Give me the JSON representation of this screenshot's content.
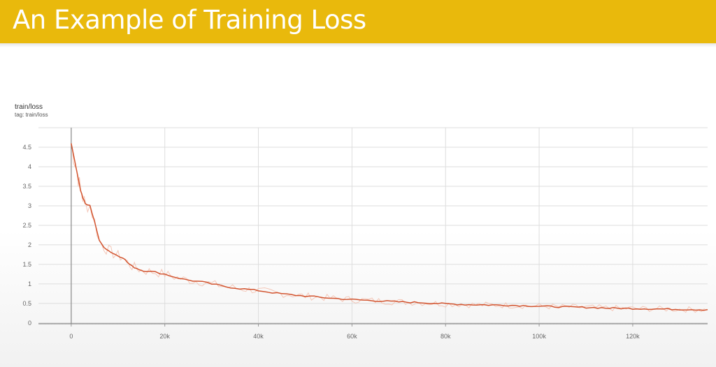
{
  "banner": {
    "title": "An Example of Training Loss"
  },
  "colors": {
    "banner": "#e9b90c",
    "line": "#d2542f",
    "raw_line": "#f4c7b8",
    "grid": "#dddddd"
  },
  "chart_data": {
    "type": "line",
    "title": "train/loss",
    "subtitle": "tag: train/loss",
    "xlabel": "",
    "ylabel": "",
    "x_ticks": [
      0,
      20000,
      40000,
      60000,
      80000,
      100000,
      120000
    ],
    "x_tick_labels": [
      "0",
      "20k",
      "40k",
      "60k",
      "80k",
      "100k",
      "120k"
    ],
    "y_ticks": [
      0,
      0.5,
      1,
      1.5,
      2,
      2.5,
      3,
      3.5,
      4,
      4.5
    ],
    "y_tick_labels": [
      "0",
      "0.5",
      "1",
      "1.5",
      "2",
      "2.5",
      "3",
      "3.5",
      "4",
      "4.5"
    ],
    "xlim": [
      -7000,
      136000
    ],
    "ylim": [
      -0.02,
      5.0
    ],
    "grid": true,
    "legend": "none",
    "series": [
      {
        "smoothed": true,
        "x": [
          0,
          500,
          1000,
          1500,
          2000,
          2500,
          3000,
          4000,
          5000,
          6000,
          7000,
          8000,
          9000,
          10000,
          11000,
          12000,
          13000,
          14000,
          15000,
          16000,
          18000,
          20000,
          22000,
          24000,
          26000,
          28000,
          30000,
          33000,
          36000,
          40000,
          44000,
          48000,
          52000,
          56000,
          60000,
          65000,
          70000,
          75000,
          80000,
          85000,
          90000,
          95000,
          100000,
          105000,
          110000,
          115000,
          120000,
          125000,
          130000,
          136000
        ],
        "y": [
          4.6,
          4.3,
          4.0,
          3.7,
          3.4,
          3.2,
          3.05,
          3.0,
          2.6,
          2.1,
          1.95,
          1.85,
          1.78,
          1.72,
          1.68,
          1.55,
          1.45,
          1.4,
          1.35,
          1.33,
          1.3,
          1.25,
          1.18,
          1.12,
          1.08,
          1.05,
          1.0,
          0.93,
          0.88,
          0.83,
          0.76,
          0.71,
          0.67,
          0.63,
          0.6,
          0.57,
          0.54,
          0.52,
          0.49,
          0.47,
          0.46,
          0.45,
          0.43,
          0.41,
          0.4,
          0.38,
          0.37,
          0.36,
          0.35,
          0.34
        ]
      }
    ]
  }
}
